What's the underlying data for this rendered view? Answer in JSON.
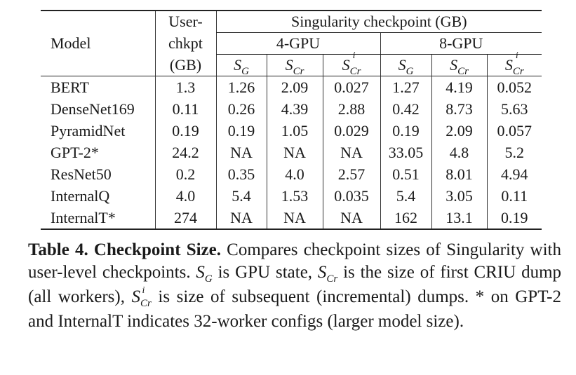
{
  "table": {
    "header": {
      "model_label": "Model",
      "userchkpt_line1": "User-",
      "userchkpt_line2": "chkpt",
      "userchkpt_line3": "(GB)",
      "singularity_label": "Singularity checkpoint (GB)",
      "group_4gpu": "4-GPU",
      "group_8gpu": "8-GPU",
      "col_s": "S",
      "col_sub_g": "G",
      "col_sub_cr": "Cr",
      "col_sup_i": "i"
    },
    "rows": [
      {
        "model": "BERT",
        "user": "1.3",
        "g4_sg": "1.26",
        "g4_scr": "2.09",
        "g4_sicr": "0.027",
        "g8_sg": "1.27",
        "g8_scr": "4.19",
        "g8_sicr": "0.052"
      },
      {
        "model": "DenseNet169",
        "user": "0.11",
        "g4_sg": "0.26",
        "g4_scr": "4.39",
        "g4_sicr": "2.88",
        "g8_sg": "0.42",
        "g8_scr": "8.73",
        "g8_sicr": "5.63"
      },
      {
        "model": "PyramidNet",
        "user": "0.19",
        "g4_sg": "0.19",
        "g4_scr": "1.05",
        "g4_sicr": "0.029",
        "g8_sg": "0.19",
        "g8_scr": "2.09",
        "g8_sicr": "0.057"
      },
      {
        "model": "GPT-2*",
        "user": "24.2",
        "g4_sg": "NA",
        "g4_scr": "NA",
        "g4_sicr": "NA",
        "g8_sg": "33.05",
        "g8_scr": "4.8",
        "g8_sicr": "5.2"
      },
      {
        "model": "ResNet50",
        "user": "0.2",
        "g4_sg": "0.35",
        "g4_scr": "4.0",
        "g4_sicr": "2.57",
        "g8_sg": "0.51",
        "g8_scr": "8.01",
        "g8_sicr": "4.94"
      },
      {
        "model": "InternalQ",
        "user": "4.0",
        "g4_sg": "5.4",
        "g4_scr": "1.53",
        "g4_sicr": "0.035",
        "g8_sg": "5.4",
        "g8_scr": "3.05",
        "g8_sicr": "0.11"
      },
      {
        "model": "InternalT*",
        "user": "274",
        "g4_sg": "NA",
        "g4_scr": "NA",
        "g4_sicr": "NA",
        "g8_sg": "162",
        "g8_scr": "13.1",
        "g8_sicr": "0.19"
      }
    ]
  },
  "caption": {
    "label": "Table 4. Checkpoint Size.",
    "text1": " Compares checkpoint sizes of Singularity with user-level checkpoints. ",
    "s": "S",
    "sub_g": "G",
    "text2": " is GPU state, ",
    "sub_cr": "Cr",
    "text3": " is the size of first CRIU dump (all workers), ",
    "sup_i": "i",
    "text4": " is size of subsequent (incremental) dumps. * on GPT-2 and InternalT indicates 32-worker configs (larger model size)."
  }
}
